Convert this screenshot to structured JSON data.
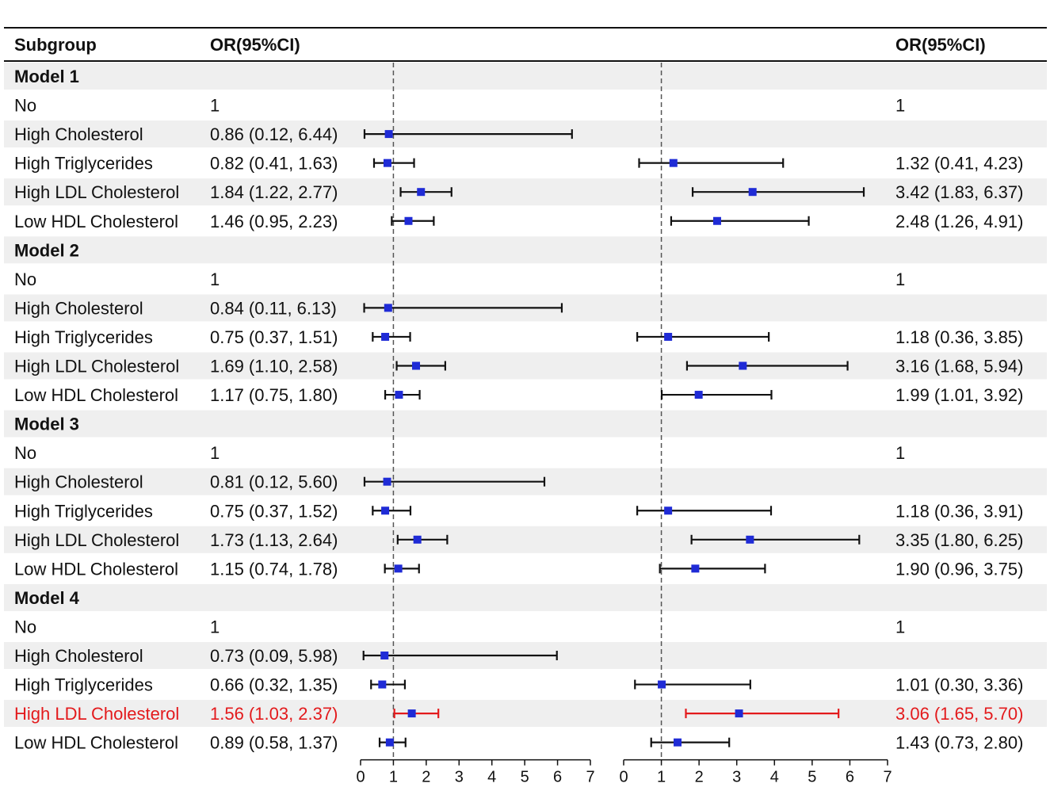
{
  "chart_data": {
    "type": "forest",
    "headers": {
      "subgroup": "Subgroup",
      "left_or": "OR(95%CI)",
      "right_or": "OR(95%CI)"
    },
    "reference_line": 1,
    "axes": [
      {
        "name": "left",
        "range": [
          0,
          7
        ],
        "ticks": [
          "0",
          "1",
          "2",
          "3",
          "4",
          "5",
          "6",
          "7"
        ]
      },
      {
        "name": "right",
        "range": [
          0,
          7
        ],
        "ticks": [
          "0",
          "1",
          "2",
          "3",
          "4",
          "5",
          "6",
          "7"
        ]
      }
    ],
    "highlight_color": "#e31a1c",
    "marker_color": "#1f2bd6",
    "rows": [
      {
        "label": "Model 1",
        "header": true
      },
      {
        "label": "No",
        "left_text": "1",
        "right_text": "1"
      },
      {
        "label": "High Cholesterol",
        "left_text": "0.86 (0.12, 6.44)",
        "left": [
          0.86,
          0.12,
          6.44
        ],
        "right_text": ""
      },
      {
        "label": "High Triglycerides",
        "left_text": "0.82 (0.41, 1.63)",
        "left": [
          0.82,
          0.41,
          1.63
        ],
        "right_text": "1.32 (0.41, 4.23)",
        "right": [
          1.32,
          0.41,
          4.23
        ]
      },
      {
        "label": "High LDL Cholesterol",
        "left_text": "1.84 (1.22, 2.77)",
        "left": [
          1.84,
          1.22,
          2.77
        ],
        "right_text": "3.42 (1.83, 6.37)",
        "right": [
          3.42,
          1.83,
          6.37
        ]
      },
      {
        "label": "Low HDL Cholesterol",
        "left_text": "1.46 (0.95, 2.23)",
        "left": [
          1.46,
          0.95,
          2.23
        ],
        "right_text": "2.48 (1.26, 4.91)",
        "right": [
          2.48,
          1.26,
          4.91
        ]
      },
      {
        "label": "Model 2",
        "header": true
      },
      {
        "label": "No",
        "left_text": "1",
        "right_text": "1"
      },
      {
        "label": "High Cholesterol",
        "left_text": "0.84 (0.11, 6.13)",
        "left": [
          0.84,
          0.11,
          6.13
        ],
        "right_text": ""
      },
      {
        "label": "High Triglycerides",
        "left_text": "0.75 (0.37, 1.51)",
        "left": [
          0.75,
          0.37,
          1.51
        ],
        "right_text": "1.18 (0.36, 3.85)",
        "right": [
          1.18,
          0.36,
          3.85
        ]
      },
      {
        "label": "High LDL Cholesterol",
        "left_text": "1.69 (1.10, 2.58)",
        "left": [
          1.69,
          1.1,
          2.58
        ],
        "right_text": "3.16 (1.68, 5.94)",
        "right": [
          3.16,
          1.68,
          5.94
        ]
      },
      {
        "label": "Low HDL Cholesterol",
        "left_text": "1.17 (0.75, 1.80)",
        "left": [
          1.17,
          0.75,
          1.8
        ],
        "right_text": "1.99 (1.01, 3.92)",
        "right": [
          1.99,
          1.01,
          3.92
        ]
      },
      {
        "label": "Model 3",
        "header": true
      },
      {
        "label": "No",
        "left_text": "1",
        "right_text": "1"
      },
      {
        "label": "High Cholesterol",
        "left_text": "0.81 (0.12, 5.60)",
        "left": [
          0.81,
          0.12,
          5.6
        ],
        "right_text": ""
      },
      {
        "label": "High Triglycerides",
        "left_text": "0.75 (0.37, 1.52)",
        "left": [
          0.75,
          0.37,
          1.52
        ],
        "right_text": "1.18 (0.36, 3.91)",
        "right": [
          1.18,
          0.36,
          3.91
        ]
      },
      {
        "label": "High LDL Cholesterol",
        "left_text": "1.73 (1.13, 2.64)",
        "left": [
          1.73,
          1.13,
          2.64
        ],
        "right_text": "3.35 (1.80, 6.25)",
        "right": [
          3.35,
          1.8,
          6.25
        ]
      },
      {
        "label": "Low HDL Cholesterol",
        "left_text": "1.15 (0.74, 1.78)",
        "left": [
          1.15,
          0.74,
          1.78
        ],
        "right_text": "1.90 (0.96, 3.75)",
        "right": [
          1.9,
          0.96,
          3.75
        ]
      },
      {
        "label": "Model 4",
        "header": true
      },
      {
        "label": "No",
        "left_text": "1",
        "right_text": "1"
      },
      {
        "label": "High Cholesterol",
        "left_text": "0.73 (0.09, 5.98)",
        "left": [
          0.73,
          0.09,
          5.98
        ],
        "right_text": ""
      },
      {
        "label": "High Triglycerides",
        "left_text": "0.66 (0.32, 1.35)",
        "left": [
          0.66,
          0.32,
          1.35
        ],
        "right_text": "1.01 (0.30, 3.36)",
        "right": [
          1.01,
          0.3,
          3.36
        ]
      },
      {
        "label": "High LDL Cholesterol",
        "left_text": "1.56 (1.03, 2.37)",
        "left": [
          1.56,
          1.03,
          2.37
        ],
        "right_text": "3.06 (1.65, 5.70)",
        "right": [
          3.06,
          1.65,
          5.7
        ],
        "highlight": true
      },
      {
        "label": "Low HDL Cholesterol",
        "left_text": "0.89 (0.58, 1.37)",
        "left": [
          0.89,
          0.58,
          1.37
        ],
        "right_text": "1.43 (0.73, 2.80)",
        "right": [
          1.43,
          0.73,
          2.8
        ]
      }
    ]
  }
}
